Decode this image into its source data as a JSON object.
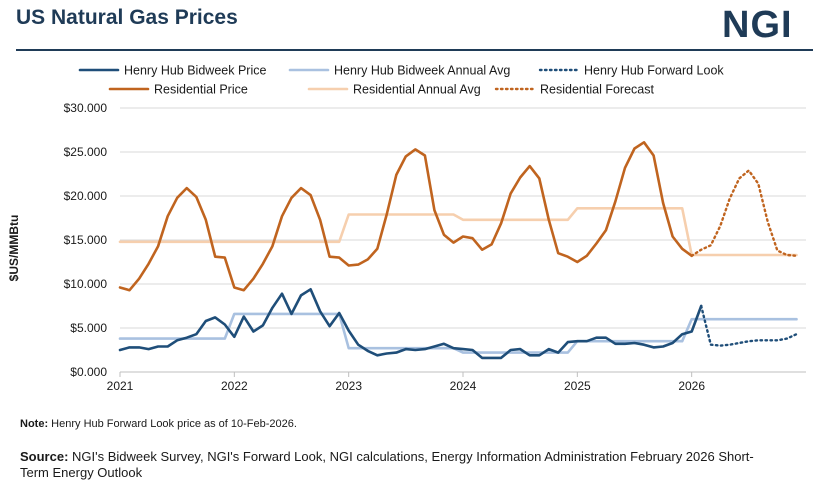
{
  "header": {
    "title": "US Natural Gas Prices",
    "logo": "NGI"
  },
  "chart_data": {
    "type": "line",
    "title": "US Natural Gas Prices",
    "ylabel": "$US/MMBtu",
    "xlabel": "",
    "ylim": [
      0,
      30
    ],
    "xlim": [
      2021.0,
      2027.0
    ],
    "y_ticks": [
      "$0.000",
      "$5.000",
      "$10.000",
      "$15.000",
      "$20.000",
      "$25.000",
      "$30.000"
    ],
    "y_tick_values": [
      0,
      5,
      10,
      15,
      20,
      25,
      30
    ],
    "x_ticks": [
      "2021",
      "2022",
      "2023",
      "2024",
      "2025",
      "2026"
    ],
    "x_tick_values": [
      2021,
      2022,
      2023,
      2024,
      2025,
      2026
    ],
    "grid": "horizontal",
    "legend_position": "top",
    "series": [
      {
        "name": "Henry Hub Bidweek Price",
        "color": "#1f4e79",
        "style": "solid",
        "x": [
          2021.0,
          2021.083,
          2021.167,
          2021.25,
          2021.333,
          2021.417,
          2021.5,
          2021.583,
          2021.667,
          2021.75,
          2021.833,
          2021.917,
          2022.0,
          2022.083,
          2022.167,
          2022.25,
          2022.333,
          2022.417,
          2022.5,
          2022.583,
          2022.667,
          2022.75,
          2022.833,
          2022.917,
          2023.0,
          2023.083,
          2023.167,
          2023.25,
          2023.333,
          2023.417,
          2023.5,
          2023.583,
          2023.667,
          2023.75,
          2023.833,
          2023.917,
          2024.0,
          2024.083,
          2024.167,
          2024.25,
          2024.333,
          2024.417,
          2024.5,
          2024.583,
          2024.667,
          2024.75,
          2024.833,
          2024.917,
          2025.0,
          2025.083,
          2025.167,
          2025.25,
          2025.333,
          2025.417,
          2025.5,
          2025.583,
          2025.667,
          2025.75,
          2025.833,
          2025.917,
          2026.0,
          2026.083
        ],
        "y": [
          2.5,
          2.8,
          2.8,
          2.6,
          2.9,
          2.9,
          3.6,
          3.9,
          4.3,
          5.8,
          6.2,
          5.4,
          4.0,
          6.3,
          4.6,
          5.3,
          7.3,
          8.9,
          6.6,
          8.7,
          9.4,
          6.9,
          5.2,
          6.7,
          4.7,
          3.1,
          2.4,
          1.9,
          2.1,
          2.2,
          2.6,
          2.5,
          2.6,
          2.9,
          3.2,
          2.7,
          2.6,
          2.5,
          1.6,
          1.6,
          1.6,
          2.5,
          2.6,
          1.9,
          1.9,
          2.6,
          2.2,
          3.4,
          3.5,
          3.5,
          3.9,
          3.9,
          3.2,
          3.2,
          3.3,
          3.1,
          2.8,
          2.9,
          3.3,
          4.3,
          4.6,
          7.5
        ]
      },
      {
        "name": "Henry Hub Bidweek Annual Avg",
        "color": "#a9c1e0",
        "style": "solid",
        "x": [
          2021.0,
          2021.917,
          2022.0,
          2022.917,
          2023.0,
          2023.917,
          2024.0,
          2024.917,
          2025.0,
          2025.917,
          2026.0,
          2026.917
        ],
        "y": [
          3.8,
          3.8,
          6.6,
          6.6,
          2.7,
          2.7,
          2.2,
          2.2,
          3.5,
          3.5,
          6.0,
          6.0
        ]
      },
      {
        "name": "Henry Hub Forward Look",
        "color": "#1f4e79",
        "style": "dotted",
        "x": [
          2026.083,
          2026.167,
          2026.25,
          2026.333,
          2026.417,
          2026.5,
          2026.583,
          2026.667,
          2026.75,
          2026.833,
          2026.917
        ],
        "y": [
          7.5,
          3.1,
          3.0,
          3.1,
          3.3,
          3.5,
          3.6,
          3.6,
          3.6,
          3.8,
          4.3
        ]
      },
      {
        "name": "Residential Price",
        "color": "#c0641f",
        "style": "solid",
        "x": [
          2021.0,
          2021.083,
          2021.167,
          2021.25,
          2021.333,
          2021.417,
          2021.5,
          2021.583,
          2021.667,
          2021.75,
          2021.833,
          2021.917,
          2022.0,
          2022.083,
          2022.167,
          2022.25,
          2022.333,
          2022.417,
          2022.5,
          2022.583,
          2022.667,
          2022.75,
          2022.833,
          2022.917,
          2023.0,
          2023.083,
          2023.167,
          2023.25,
          2023.333,
          2023.417,
          2023.5,
          2023.583,
          2023.667,
          2023.75,
          2023.833,
          2023.917,
          2024.0,
          2024.083,
          2024.167,
          2024.25,
          2024.333,
          2024.417,
          2024.5,
          2024.583,
          2024.667,
          2024.75,
          2024.833,
          2024.917,
          2025.0,
          2025.083,
          2025.167,
          2025.25,
          2025.333,
          2025.417,
          2025.5,
          2025.583,
          2025.667,
          2025.75,
          2025.833,
          2025.917,
          2026.0
        ],
        "y": [
          9.6,
          9.3,
          10.6,
          12.3,
          14.3,
          17.7,
          19.8,
          20.9,
          19.9,
          17.3,
          13.1,
          13.0,
          9.6,
          9.3,
          10.6,
          12.3,
          14.3,
          17.7,
          19.8,
          20.9,
          20.1,
          17.3,
          13.1,
          13.0,
          12.1,
          12.2,
          12.8,
          14.0,
          17.9,
          22.4,
          24.5,
          25.3,
          24.6,
          18.4,
          15.6,
          14.7,
          15.4,
          15.2,
          13.9,
          14.5,
          16.9,
          20.3,
          22.1,
          23.4,
          22.0,
          17.3,
          13.5,
          13.1,
          12.5,
          13.2,
          14.6,
          16.1,
          19.4,
          23.2,
          25.4,
          26.1,
          24.6,
          19.2,
          15.4,
          14.0,
          13.2
        ]
      },
      {
        "name": "Residential Annual Avg",
        "color": "#f6cfae",
        "style": "solid",
        "x": [
          2021.0,
          2022.917,
          2023.0,
          2023.917,
          2024.0,
          2024.917,
          2025.0,
          2025.917,
          2026.0,
          2026.917
        ],
        "y": [
          14.8,
          14.8,
          17.9,
          17.9,
          17.3,
          17.3,
          18.6,
          18.6,
          13.3,
          13.3
        ]
      },
      {
        "name": "Residential Forecast",
        "color": "#c0641f",
        "style": "dotted",
        "x": [
          2026.0,
          2026.083,
          2026.167,
          2026.25,
          2026.333,
          2026.417,
          2026.5,
          2026.583,
          2026.667,
          2026.75,
          2026.833,
          2026.917
        ],
        "y": [
          13.2,
          13.9,
          14.4,
          16.6,
          19.7,
          22.0,
          22.9,
          21.4,
          17.0,
          13.8,
          13.3,
          13.2
        ]
      }
    ]
  },
  "footer": {
    "note_label": "Note:",
    "note_text": " Henry Hub Forward Look price as of 10-Feb-2026.",
    "source_label": "Source:",
    "source_text": " NGI's Bidweek Survey, NGI's Forward Look, NGI calculations, Energy Information Administration February 2026 Short-Term Energy Outlook"
  }
}
